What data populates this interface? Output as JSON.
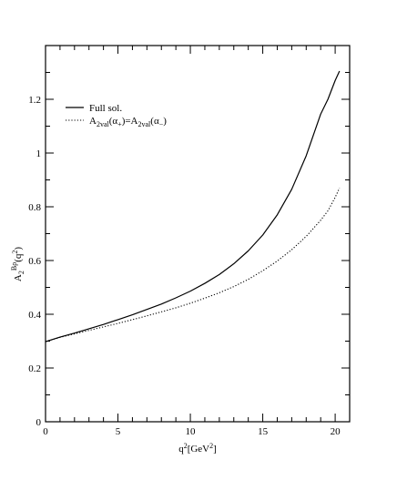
{
  "chart_data": {
    "type": "line",
    "title": "",
    "xlabel": {
      "main": "q",
      "sup": "2",
      "tail": "[GeV",
      "unit_sup": "2",
      "end": "]"
    },
    "ylabel": {
      "main": "A",
      "sub": "2",
      "sup": "Bρ",
      "tail": "(q",
      "tail_sup": "2",
      "end": ")"
    },
    "xlim": [
      0,
      21
    ],
    "ylim": [
      0,
      1.4
    ],
    "x_ticks": [
      0,
      5,
      10,
      15,
      20
    ],
    "x_tick_labels": [
      "0",
      "5",
      "10",
      "15",
      "20"
    ],
    "y_ticks": [
      0,
      0.2,
      0.4,
      0.6,
      0.8,
      1.0,
      1.2
    ],
    "y_tick_labels": [
      "0",
      "0.2",
      "0.4",
      "0.6",
      "0.8",
      "1",
      "1.2"
    ],
    "grid": false,
    "legend_position": "top-left",
    "series": [
      {
        "name": "Full sol.",
        "style": "solid",
        "color": "#000000",
        "x": [
          0,
          1,
          2,
          3,
          4,
          5,
          6,
          7,
          8,
          9,
          10,
          11,
          12,
          13,
          14,
          15,
          16,
          17,
          18,
          19,
          19.5,
          20,
          20.3
        ],
        "y": [
          0.298,
          0.315,
          0.33,
          0.346,
          0.362,
          0.38,
          0.398,
          0.418,
          0.438,
          0.461,
          0.486,
          0.515,
          0.548,
          0.588,
          0.636,
          0.695,
          0.77,
          0.865,
          0.99,
          1.145,
          1.2,
          1.27,
          1.305
        ]
      },
      {
        "name_parts": [
          "A",
          "2val",
          "(α",
          "+",
          ")=A",
          "2val",
          "(α",
          "−",
          ")"
        ],
        "style": "dotted",
        "color": "#000000",
        "x": [
          0,
          1,
          2,
          3,
          4,
          5,
          6,
          7,
          8,
          9,
          10,
          11,
          12,
          13,
          14,
          15,
          16,
          17,
          18,
          19,
          19.5,
          20,
          20.3
        ],
        "y": [
          0.298,
          0.314,
          0.327,
          0.34,
          0.353,
          0.366,
          0.38,
          0.394,
          0.409,
          0.424,
          0.441,
          0.46,
          0.48,
          0.503,
          0.53,
          0.562,
          0.598,
          0.64,
          0.69,
          0.75,
          0.785,
          0.835,
          0.87
        ]
      }
    ]
  }
}
